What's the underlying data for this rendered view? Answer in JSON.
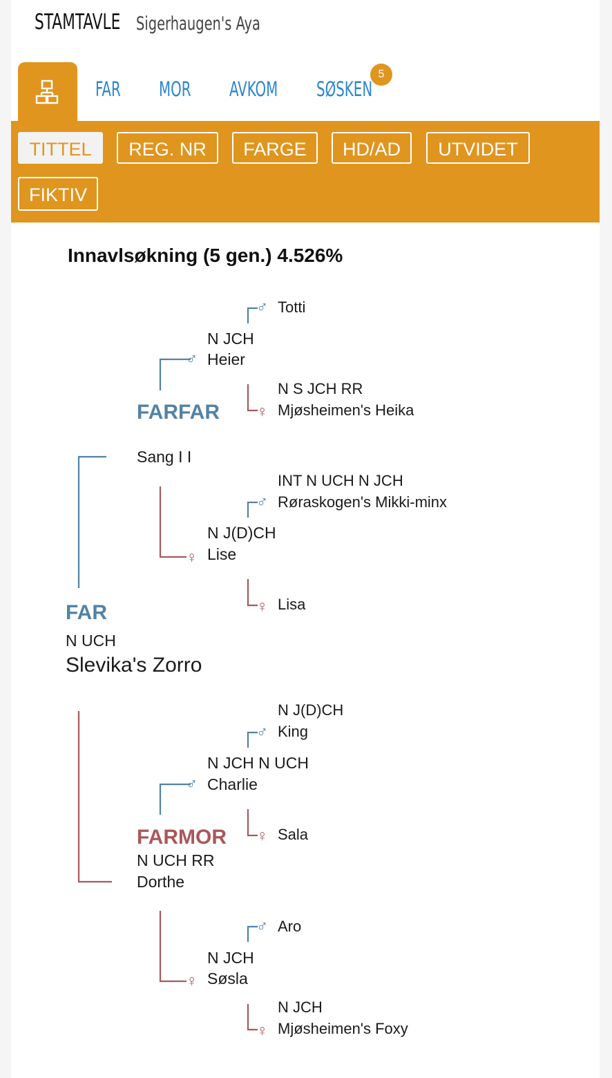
{
  "header": {
    "title": "STAMTAVLE",
    "subtitle": "Sigerhaugen's Aya"
  },
  "tabs": [
    {
      "label": "FAR"
    },
    {
      "label": "MOR"
    },
    {
      "label": "AVKOM"
    },
    {
      "label": "SØSKEN",
      "badge": "5"
    }
  ],
  "filters": [
    "TITTEL",
    "REG. NR",
    "FARGE",
    "HD/AD",
    "UTVIDET",
    "FIKTIV"
  ],
  "active_filter": "TITTEL",
  "inbreeding": "Innavlsøkning (5 gen.) 4.526%",
  "symbols": {
    "male": "♂",
    "female": "♀"
  },
  "colors": {
    "accent": "#e0951e",
    "tab_blue": "#2b86cf",
    "male": "#5282a6",
    "female": "#a8585c"
  },
  "pedigree": {
    "far": {
      "role": "FAR",
      "title": "N UCH",
      "name": "Slevika's Zorro"
    },
    "farfar": {
      "role": "FARFAR",
      "name": "Sang I I"
    },
    "farmor": {
      "role": "FARMOR",
      "title": "N UCH RR",
      "name": "Dorthe"
    },
    "heier": {
      "title": "N JCH",
      "name": "Heier"
    },
    "totti": {
      "name": "Totti"
    },
    "heika": {
      "title": "N S JCH RR",
      "name": "Mjøsheimen's Heika"
    },
    "lise": {
      "title": "N J(D)CH",
      "name": "Lise"
    },
    "mikki": {
      "title": "INT N UCH N JCH",
      "name": "Røraskogen's Mikki-minx"
    },
    "lisa": {
      "name": "Lisa"
    },
    "charlie": {
      "title": "N JCH N UCH",
      "name": "Charlie"
    },
    "king": {
      "title": "N J(D)CH",
      "name": "King"
    },
    "sala": {
      "name": "Sala"
    },
    "sosla": {
      "title": "N JCH",
      "name": "Søsla"
    },
    "aro": {
      "name": "Aro"
    },
    "foxy": {
      "title": "N JCH",
      "name": "Mjøsheimen's Foxy"
    }
  }
}
